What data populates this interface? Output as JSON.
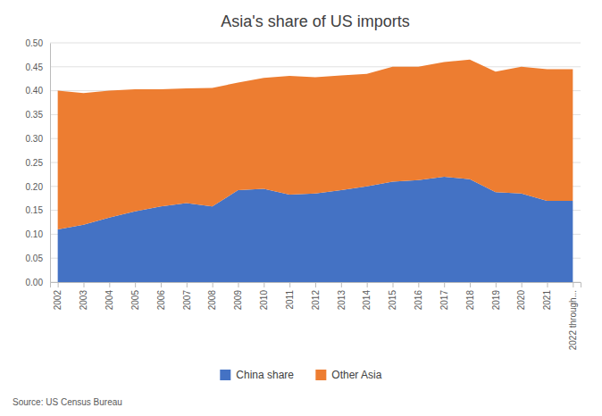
{
  "chart_data": {
    "type": "area",
    "stacked": true,
    "title": "Asia's share of US imports",
    "categories": [
      "2002",
      "2003",
      "2004",
      "2005",
      "2006",
      "2007",
      "2008",
      "2009",
      "2010",
      "2011",
      "2012",
      "2013",
      "2014",
      "2015",
      "2016",
      "2017",
      "2018",
      "2019",
      "2020",
      "2021",
      "2022 through..."
    ],
    "series": [
      {
        "name": "China share",
        "color": "#4472c4",
        "values": [
          0.11,
          0.12,
          0.135,
          0.148,
          0.158,
          0.165,
          0.158,
          0.192,
          0.195,
          0.183,
          0.185,
          0.192,
          0.2,
          0.21,
          0.213,
          0.22,
          0.215,
          0.188,
          0.185,
          0.17,
          0.17
        ]
      },
      {
        "name": "Other Asia",
        "color": "#ed7d31",
        "values": [
          0.29,
          0.275,
          0.265,
          0.255,
          0.245,
          0.24,
          0.248,
          0.225,
          0.232,
          0.248,
          0.243,
          0.24,
          0.235,
          0.24,
          0.237,
          0.24,
          0.25,
          0.252,
          0.265,
          0.275,
          0.275
        ]
      }
    ],
    "ylim": [
      0.0,
      0.5
    ],
    "yticks": [
      {
        "value": 0.0,
        "label": "0.00"
      },
      {
        "value": 0.05,
        "label": "0.05"
      },
      {
        "value": 0.1,
        "label": "0.10"
      },
      {
        "value": 0.15,
        "label": "0.15"
      },
      {
        "value": 0.2,
        "label": "0.20"
      },
      {
        "value": 0.25,
        "label": "0.25"
      },
      {
        "value": 0.3,
        "label": "0.30"
      },
      {
        "value": 0.35,
        "label": "0.35"
      },
      {
        "value": 0.4,
        "label": "0.40"
      },
      {
        "value": 0.45,
        "label": "0.45"
      },
      {
        "value": 0.5,
        "label": "0.50"
      }
    ],
    "grid": true,
    "legend": "bottom",
    "annotations": [
      "Source: US Census Bureau"
    ]
  }
}
